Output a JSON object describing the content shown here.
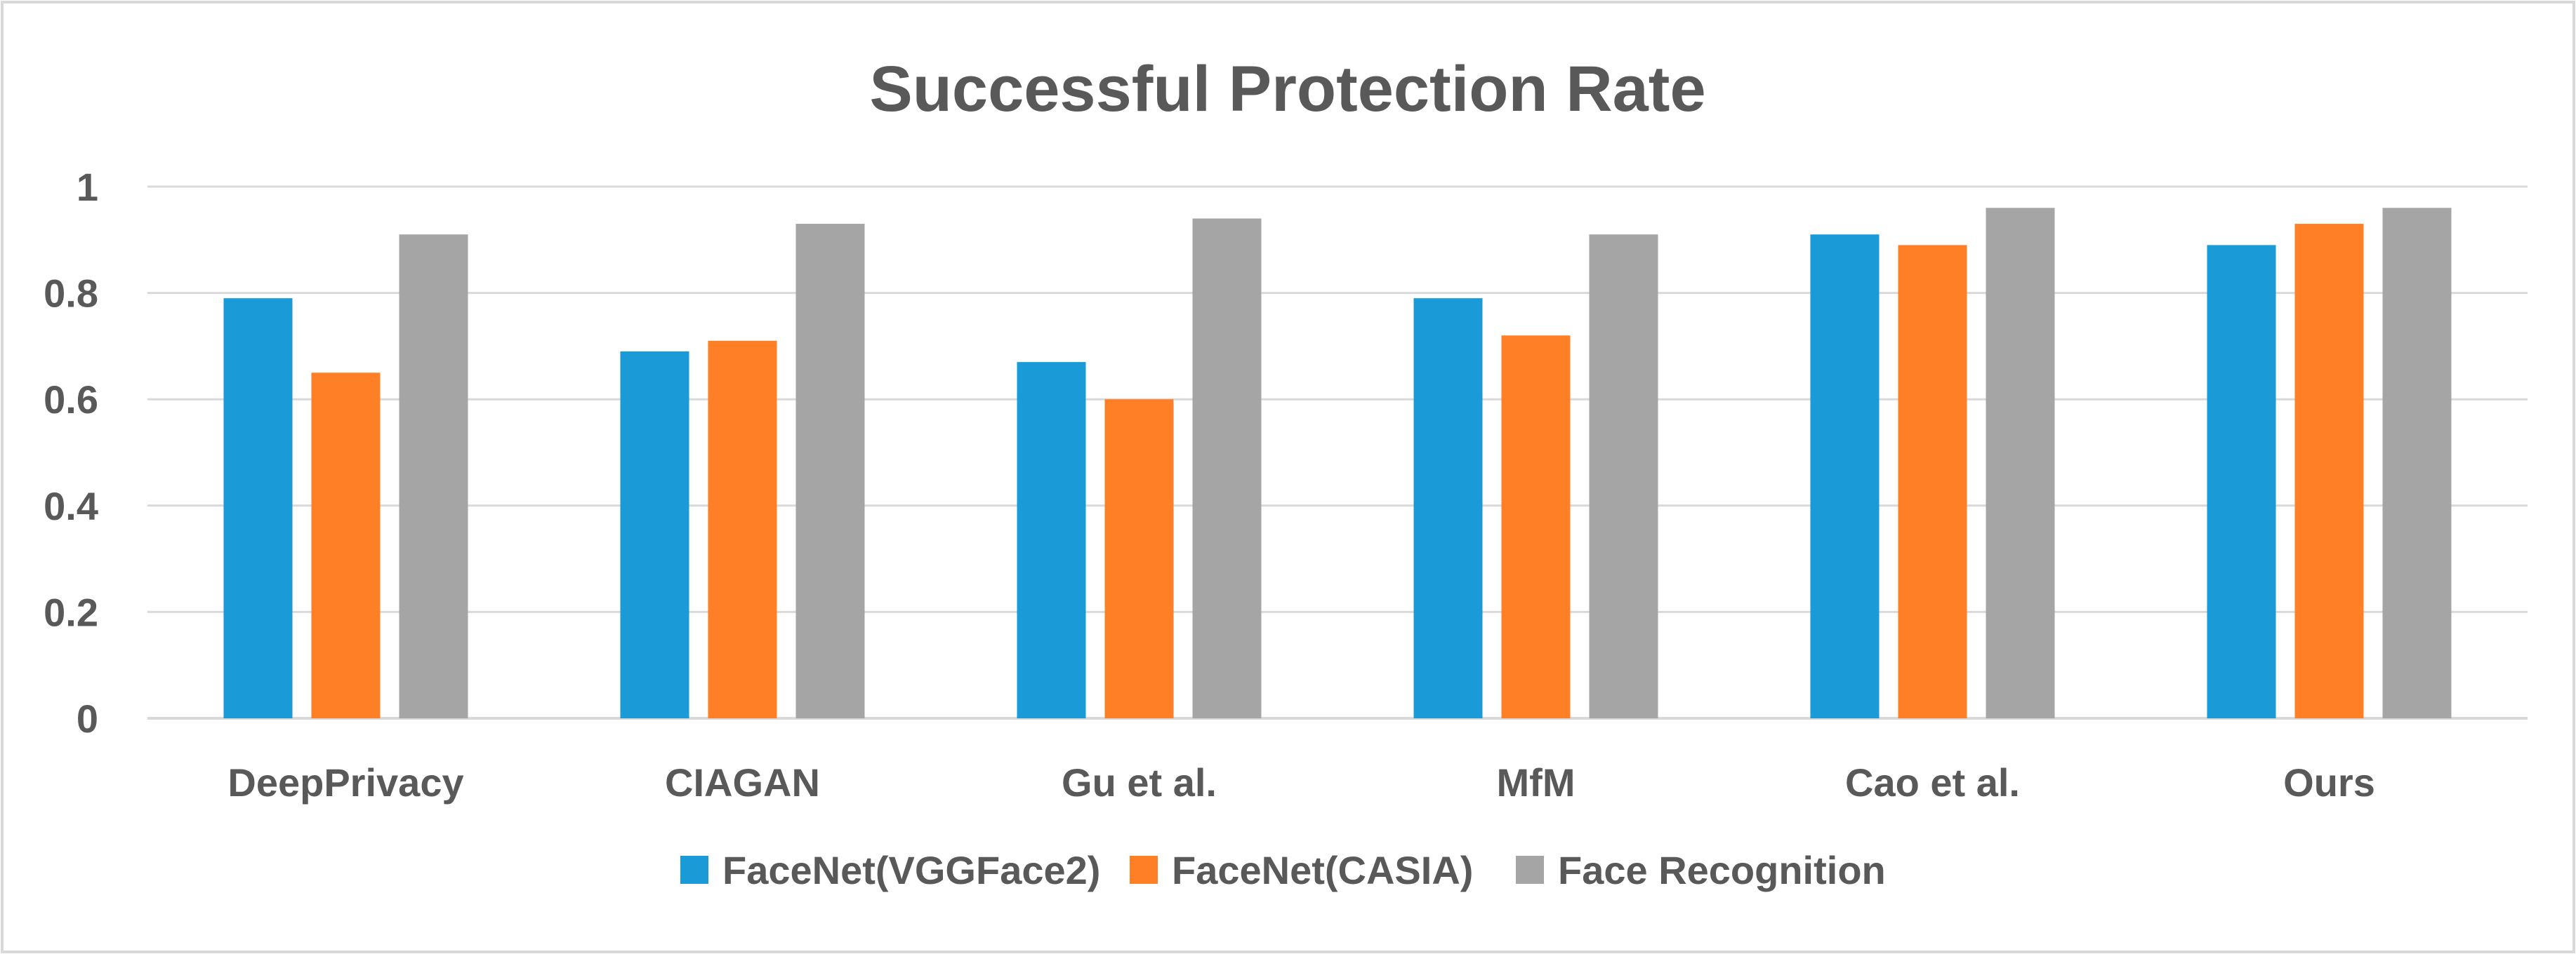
{
  "chart_data": {
    "type": "bar",
    "title": "Successful Protection Rate",
    "xlabel": "",
    "ylabel": "",
    "ylim": [
      0,
      1
    ],
    "yticks": [
      0,
      0.2,
      0.4,
      0.6,
      0.8,
      1
    ],
    "ytick_labels": [
      "0",
      "0.2",
      "0.4",
      "0.6",
      "0.8",
      "1"
    ],
    "grid": true,
    "legend_position": "bottom",
    "categories": [
      "DeepPrivacy",
      "CIAGAN",
      "Gu et al.",
      "MfM",
      "Cao et al.",
      "Ours"
    ],
    "series": [
      {
        "name": "FaceNet(VGGFace2)",
        "color": "#1a9bd7",
        "values": [
          0.79,
          0.69,
          0.67,
          0.79,
          0.91,
          0.89
        ]
      },
      {
        "name": "FaceNet(CASIA)",
        "color": "#ff7f27",
        "values": [
          0.65,
          0.71,
          0.6,
          0.72,
          0.89,
          0.93
        ]
      },
      {
        "name": "Face Recognition",
        "color": "#a5a5a5",
        "values": [
          0.91,
          0.93,
          0.94,
          0.91,
          0.96,
          0.96
        ]
      }
    ]
  },
  "colors": {
    "frame_border": "#d9d9d9",
    "gridline": "#d9d9d9",
    "text": "#595959"
  }
}
